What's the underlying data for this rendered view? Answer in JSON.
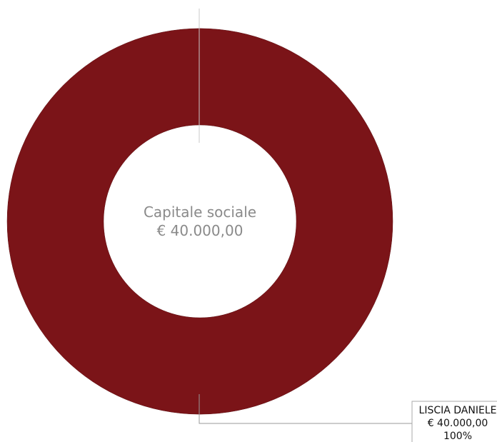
{
  "colors": {
    "slice": "#7b1418",
    "center_text": "#8a8a8a",
    "leader": "#9a9a9a",
    "label_box_border": "#aaaaaa"
  },
  "center": {
    "title": "Capitale sociale",
    "value": "€ 40.000,00"
  },
  "chart_data": {
    "type": "pie",
    "subtype": "donut",
    "title": "",
    "center_text": [
      "Capitale sociale",
      "€ 40.000,00"
    ],
    "slices": [
      {
        "label": "LISCIA DANIELE",
        "value": 40000,
        "value_label": "€ 40.000,00",
        "percent": 100,
        "percent_label": "100%",
        "color": "#7b1418"
      }
    ]
  }
}
